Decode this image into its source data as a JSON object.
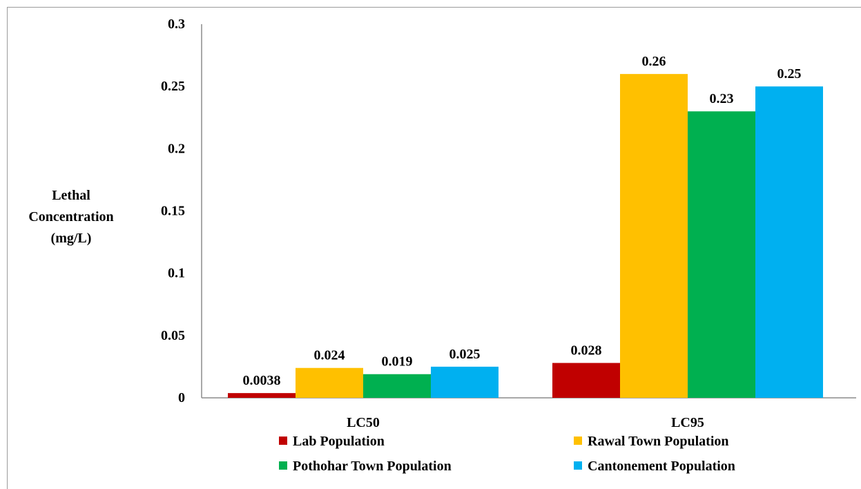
{
  "chart_data": {
    "type": "bar",
    "categories": [
      "LC50",
      "LC95"
    ],
    "series": [
      {
        "name": "Lab Population",
        "color": "#C00000",
        "values": [
          0.0038,
          0.028
        ],
        "labels": [
          "0.0038",
          "0.028"
        ]
      },
      {
        "name": "Rawal Town Population",
        "color": "#FFC000",
        "values": [
          0.024,
          0.26
        ],
        "labels": [
          "0.024",
          "0.26"
        ]
      },
      {
        "name": "Pothohar Town Population",
        "color": "#00B050",
        "values": [
          0.019,
          0.23
        ],
        "labels": [
          "0.019",
          "0.23"
        ]
      },
      {
        "name": "Cantonement Population",
        "color": "#00B0F0",
        "values": [
          0.025,
          0.25
        ],
        "labels": [
          "0.025",
          "0.25"
        ]
      }
    ],
    "ylabel_lines": [
      "Lethal",
      "Concentration",
      "(mg/L)"
    ],
    "ylim": [
      0,
      0.3
    ],
    "yticks": [
      "0",
      "0.05",
      "0.1",
      "0.15",
      "0.2",
      "0.25",
      "0.3"
    ],
    "legend": "bottom",
    "grid": false
  }
}
